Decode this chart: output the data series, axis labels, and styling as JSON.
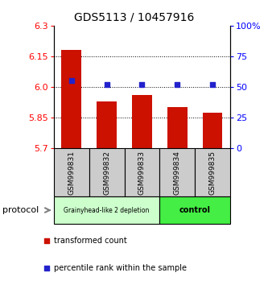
{
  "title": "GDS5113 / 10457916",
  "samples": [
    "GSM999831",
    "GSM999832",
    "GSM999833",
    "GSM999834",
    "GSM999835"
  ],
  "bar_values": [
    6.18,
    5.93,
    5.96,
    5.9,
    5.875
  ],
  "percentile_right": [
    55,
    52,
    52,
    52,
    52
  ],
  "bar_color": "#cc1100",
  "percentile_color": "#2222cc",
  "ylim_left": [
    5.7,
    6.3
  ],
  "ylim_right": [
    0,
    100
  ],
  "yticks_left": [
    5.7,
    5.85,
    6.0,
    6.15,
    6.3
  ],
  "yticks_right": [
    0,
    25,
    50,
    75,
    100
  ],
  "ytick_labels_right": [
    "0",
    "25",
    "50",
    "75",
    "100%"
  ],
  "bar_bottom": 5.7,
  "group1_samples": [
    0,
    1,
    2
  ],
  "group2_samples": [
    3,
    4
  ],
  "group1_label": "Grainyhead-like 2 depletion",
  "group2_label": "control",
  "group1_color": "#ccffcc",
  "group2_color": "#44ee44",
  "protocol_label": "protocol",
  "legend_bar_label": "transformed count",
  "legend_pct_label": "percentile rank within the sample",
  "sample_box_color": "#cccccc",
  "title_fontsize": 10,
  "tick_fontsize": 8,
  "bar_width": 0.55
}
